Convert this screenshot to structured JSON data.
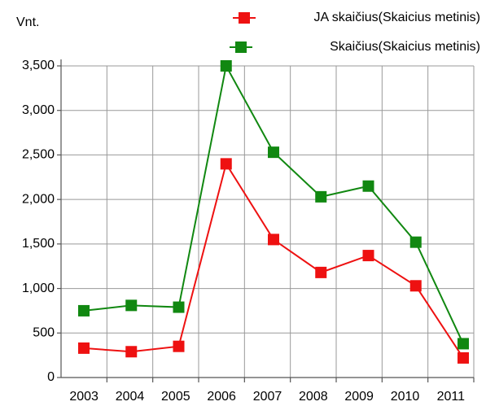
{
  "chart_data": {
    "type": "line",
    "y_axis_label": "Vnt.",
    "categories": [
      "2003",
      "2004",
      "2005",
      "2006",
      "2007",
      "2008",
      "2009",
      "2010",
      "2011"
    ],
    "series": [
      {
        "name": "JA skaičius(Skaicius metinis)",
        "color": "#ee1111",
        "values": [
          330,
          290,
          350,
          2400,
          1550,
          1180,
          1370,
          1030,
          220
        ]
      },
      {
        "name": "Skaičius(Skaicius metinis)",
        "color": "#118811",
        "values": [
          750,
          810,
          790,
          3500,
          2530,
          2030,
          2150,
          1520,
          380
        ]
      }
    ],
    "ylim": [
      0,
      3500
    ],
    "yticks": [
      0,
      500,
      {
        "value": 1000,
        "label": "1,000"
      },
      {
        "value": 1500,
        "label": "1,500"
      },
      {
        "value": 2000,
        "label": "2,000"
      },
      {
        "value": 2500,
        "label": "2,500"
      },
      {
        "value": 3000,
        "label": "3,000"
      },
      {
        "value": 3500,
        "label": "3,500"
      }
    ],
    "grid": true
  }
}
